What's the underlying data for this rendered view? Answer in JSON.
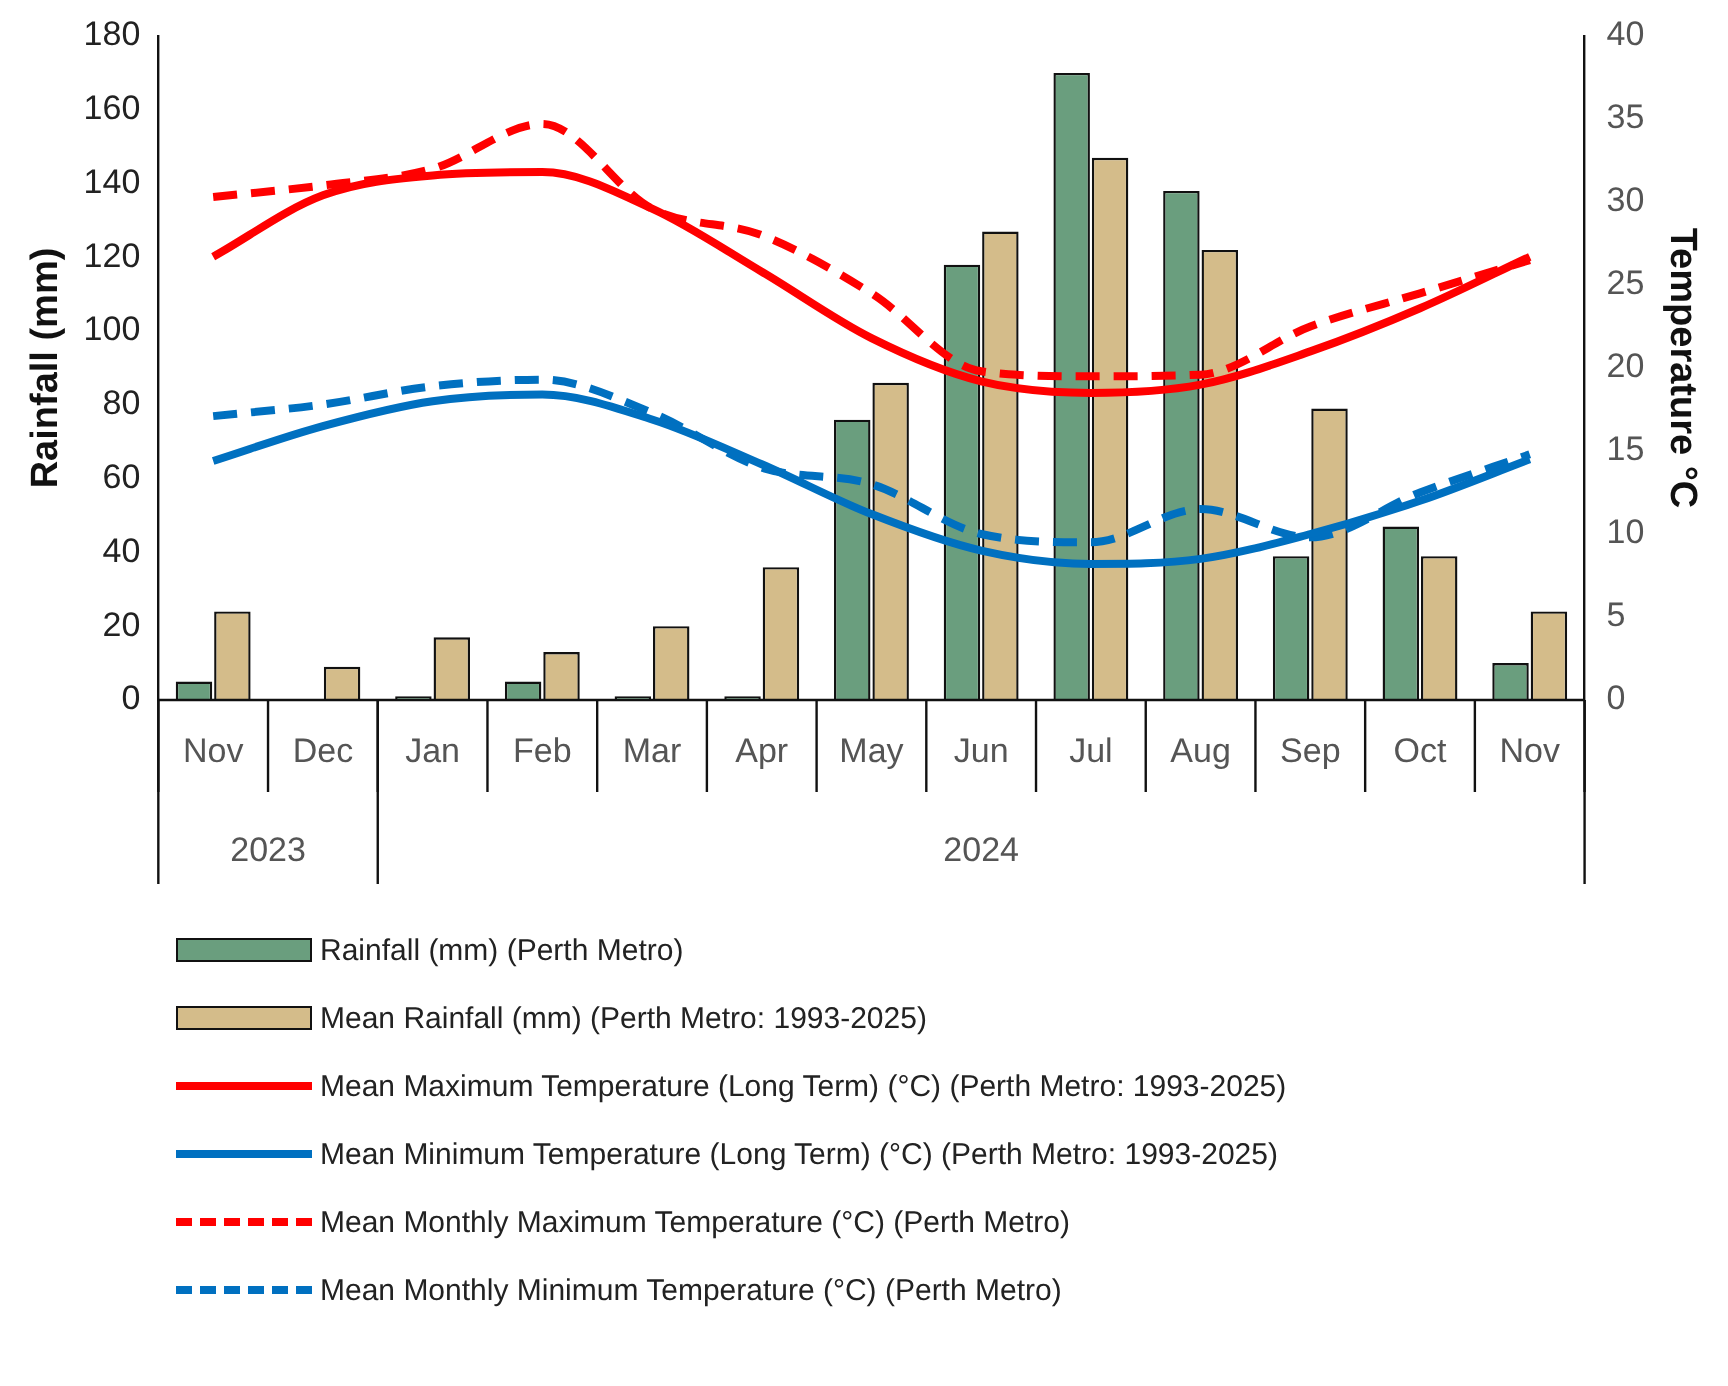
{
  "chart_data": {
    "type": "bar",
    "ylabel": "Rainfall (mm)",
    "y2label": "Temperature °C",
    "categories": [
      "Nov",
      "Dec",
      "Jan",
      "Feb",
      "Mar",
      "Apr",
      "May",
      "Jun",
      "Jul",
      "Aug",
      "Sep",
      "Oct",
      "Nov"
    ],
    "annotations": [
      "2023",
      "2024"
    ],
    "ylim": [
      0,
      180
    ],
    "yticks": [
      0,
      20,
      40,
      60,
      80,
      100,
      120,
      140,
      160,
      180
    ],
    "y2lim": [
      0,
      40
    ],
    "y2ticks": [
      0,
      5,
      10,
      15,
      20,
      25,
      30,
      35,
      40
    ],
    "grid": false,
    "legend": "bottom",
    "marker": "none",
    "series": [
      {
        "name": "Rainfall (mm) (Perth Metro)",
        "color": "#6a9e7e",
        "values": [
          5,
          0,
          1,
          5,
          1,
          1,
          76,
          118,
          170,
          138,
          39,
          47,
          10
        ]
      },
      {
        "name": "Mean Rainfall (mm) (Perth Metro: 1993-2025)",
        "color": "#d4bc8a",
        "values": [
          24,
          9,
          17,
          13,
          20,
          36,
          86,
          127,
          147,
          122,
          79,
          39,
          24
        ]
      },
      {
        "name": "Mean Maximum Temperature (Long Term) (°C) (Perth Metro: 1993-2025)",
        "type": "line",
        "axis": "y2",
        "line_style": "solid",
        "color": "#ff0000",
        "values": [
          26.7,
          30.4,
          31.6,
          31.8,
          29.6,
          25.8,
          21.8,
          19.2,
          18.5,
          19,
          21,
          23.6,
          26.7
        ]
      },
      {
        "name": "Mean Minimum Temperature (Long Term) (°C) (Perth Metro: 1993-2025)",
        "type": "line",
        "axis": "y2",
        "line_style": "solid",
        "color": "#0070c0",
        "values": [
          14.4,
          16.5,
          18,
          18.4,
          16.9,
          14.2,
          11.2,
          9,
          8.2,
          8.5,
          10,
          12,
          14.5
        ]
      },
      {
        "name": "Mean Monthly Maximum Temperature (°C) (Perth Metro)",
        "type": "line",
        "axis": "y2",
        "line_style": "dashed",
        "color": "#ff0000",
        "values": [
          30.3,
          31,
          32,
          34.7,
          29.6,
          28,
          24.5,
          19.8,
          19.5,
          19.6,
          22.5,
          24.5,
          26.5
        ]
      },
      {
        "name": "Mean Monthly Minimum Temperature (°C) (Perth Metro)",
        "type": "line",
        "axis": "y2",
        "line_style": "dashed",
        "color": "#0070c0",
        "values": [
          17.1,
          17.8,
          18.9,
          19.3,
          17.3,
          14,
          13,
          10,
          9.5,
          11.5,
          9.8,
          12.5,
          14.8
        ]
      }
    ]
  }
}
